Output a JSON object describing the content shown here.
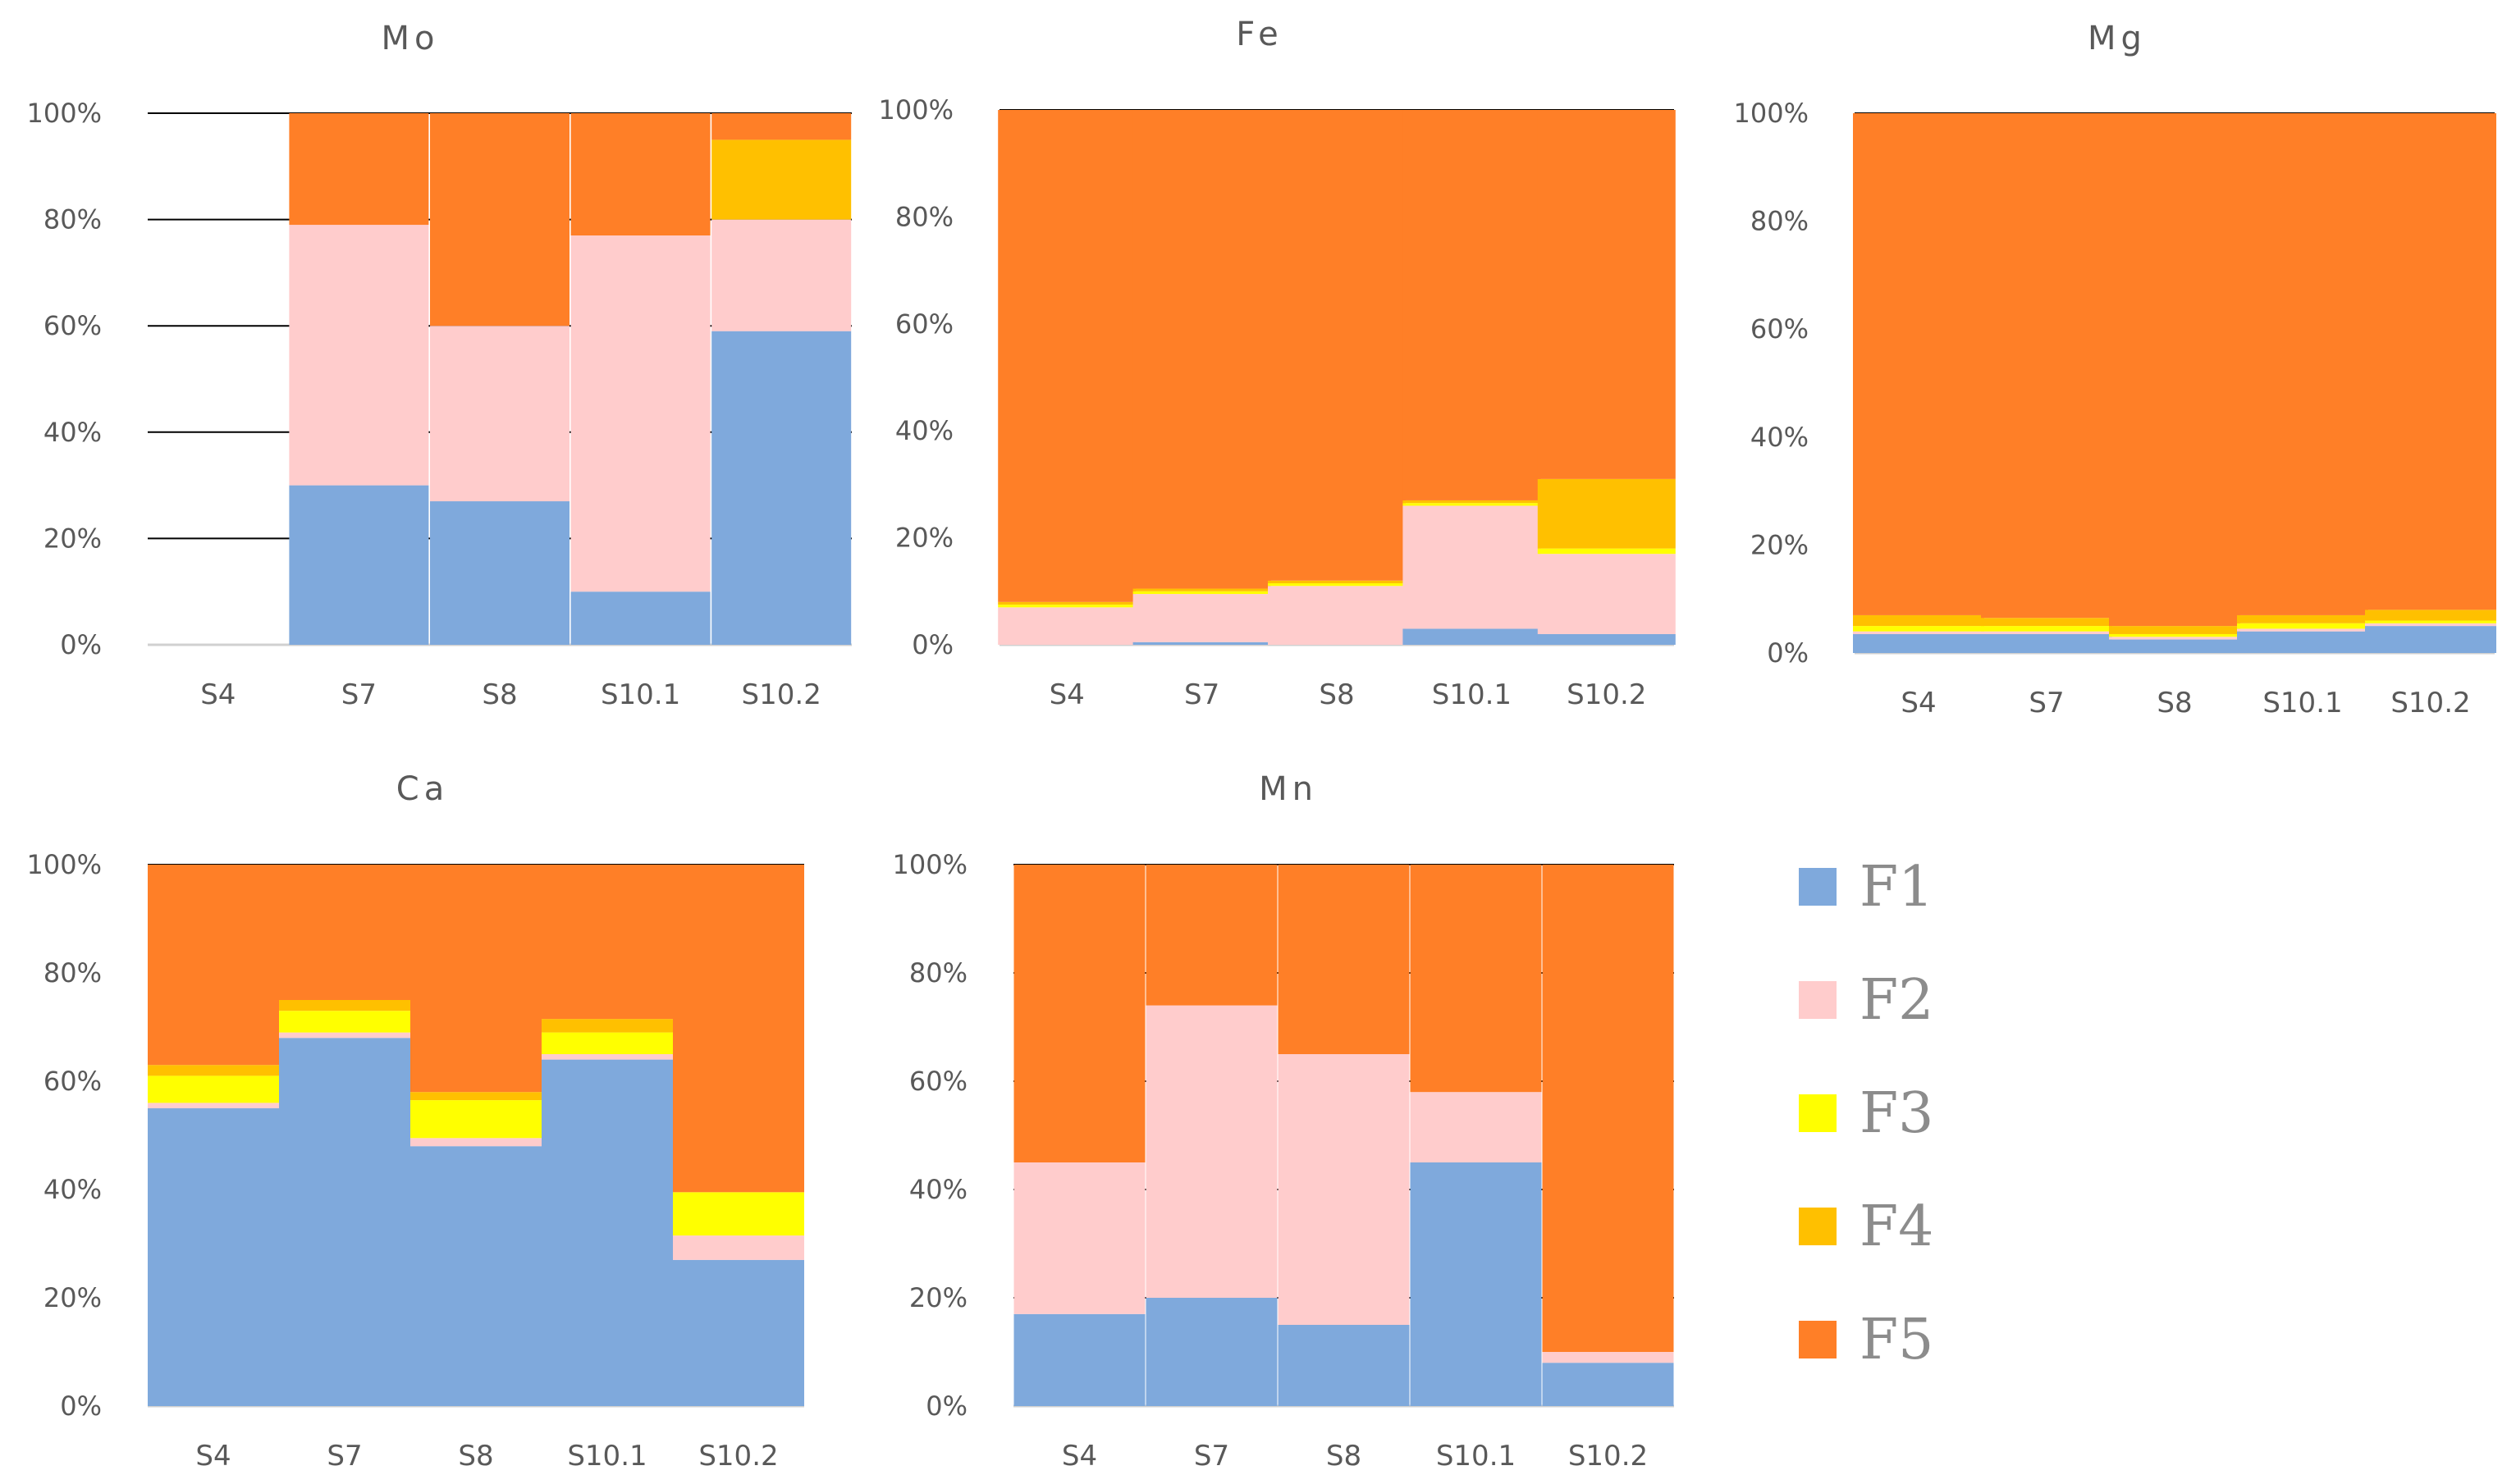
{
  "legend": {
    "items": [
      {
        "label": "F1",
        "color": "#7fa9dc"
      },
      {
        "label": "F2",
        "color": "#ffcccc"
      },
      {
        "label": "F3",
        "color": "#ffff00"
      },
      {
        "label": "F4",
        "color": "#ffc000"
      },
      {
        "label": "F5",
        "color": "#ff7f27"
      }
    ]
  },
  "chart_data": [
    {
      "type": "bar",
      "stacked": true,
      "title": "Mo",
      "categories": [
        "S4",
        "S7",
        "S8",
        "S10.1",
        "S10.2"
      ],
      "ylim": [
        0,
        100
      ],
      "yticks": [
        "0%",
        "20%",
        "40%",
        "60%",
        "80%",
        "100%"
      ],
      "grid": true,
      "series": [
        {
          "name": "F1",
          "values": [
            0,
            30,
            27,
            10,
            59
          ]
        },
        {
          "name": "F2",
          "values": [
            0,
            49,
            33,
            67,
            21
          ]
        },
        {
          "name": "F3",
          "values": [
            0,
            0,
            0,
            0,
            0
          ]
        },
        {
          "name": "F4",
          "values": [
            0,
            0,
            0,
            0,
            15
          ]
        },
        {
          "name": "F5",
          "values": [
            0,
            21,
            40,
            23,
            5
          ]
        }
      ]
    },
    {
      "type": "bar",
      "stacked": true,
      "title": "Fe",
      "categories": [
        "S4",
        "S7",
        "S8",
        "S10.1",
        "S10.2"
      ],
      "ylim": [
        0,
        100
      ],
      "yticks": [
        "0%",
        "20%",
        "40%",
        "60%",
        "80%",
        "100%"
      ],
      "grid": true,
      "series": [
        {
          "name": "F1",
          "values": [
            0,
            0.5,
            0,
            3,
            2
          ]
        },
        {
          "name": "F2",
          "values": [
            7,
            9,
            11,
            23,
            15
          ]
        },
        {
          "name": "F3",
          "values": [
            0.5,
            0.5,
            0.5,
            0.5,
            1
          ]
        },
        {
          "name": "F4",
          "values": [
            0.5,
            0.5,
            0.5,
            0.5,
            13
          ]
        },
        {
          "name": "F5",
          "values": [
            92,
            89.5,
            88,
            73,
            69
          ]
        }
      ]
    },
    {
      "type": "bar",
      "stacked": true,
      "title": "Mg",
      "categories": [
        "S4",
        "S7",
        "S8",
        "S10.1",
        "S10.2"
      ],
      "ylim": [
        0,
        100
      ],
      "yticks": [
        "0%",
        "20%",
        "40%",
        "60%",
        "80%",
        "100%"
      ],
      "grid": true,
      "series": [
        {
          "name": "F1",
          "values": [
            3.5,
            3.5,
            2.5,
            4,
            5
          ]
        },
        {
          "name": "F2",
          "values": [
            0.5,
            0.5,
            0.5,
            0.5,
            0.5
          ]
        },
        {
          "name": "F3",
          "values": [
            1,
            1,
            0.5,
            1,
            0.5
          ]
        },
        {
          "name": "F4",
          "values": [
            2,
            1.5,
            1.5,
            1.5,
            2
          ]
        },
        {
          "name": "F5",
          "values": [
            93,
            93.5,
            95,
            93,
            92
          ]
        }
      ]
    },
    {
      "type": "bar",
      "stacked": true,
      "title": "Ca",
      "categories": [
        "S4",
        "S7",
        "S8",
        "S10.1",
        "S10.2"
      ],
      "ylim": [
        0,
        100
      ],
      "yticks": [
        "0%",
        "20%",
        "40%",
        "60%",
        "80%",
        "100%"
      ],
      "grid": true,
      "series": [
        {
          "name": "F1",
          "values": [
            55,
            68,
            48,
            64,
            27
          ]
        },
        {
          "name": "F2",
          "values": [
            1,
            1,
            1.5,
            1,
            4.5
          ]
        },
        {
          "name": "F3",
          "values": [
            5,
            4,
            7,
            4,
            8
          ]
        },
        {
          "name": "F4",
          "values": [
            2,
            2,
            1.5,
            2.5,
            0
          ]
        },
        {
          "name": "F5",
          "values": [
            37,
            25,
            42,
            28.5,
            60.5
          ]
        }
      ]
    },
    {
      "type": "bar",
      "stacked": true,
      "title": "Mn",
      "categories": [
        "S4",
        "S7",
        "S8",
        "S10.1",
        "S10.2"
      ],
      "ylim": [
        0,
        100
      ],
      "yticks": [
        "0%",
        "20%",
        "40%",
        "60%",
        "80%",
        "100%"
      ],
      "grid": true,
      "series": [
        {
          "name": "F1",
          "values": [
            17,
            20,
            15,
            45,
            8
          ]
        },
        {
          "name": "F2",
          "values": [
            28,
            54,
            50,
            13,
            2
          ]
        },
        {
          "name": "F3",
          "values": [
            0,
            0,
            0,
            0,
            0
          ]
        },
        {
          "name": "F4",
          "values": [
            0,
            0,
            0,
            0,
            0
          ]
        },
        {
          "name": "F5",
          "values": [
            55,
            26,
            35,
            42,
            90
          ]
        }
      ]
    }
  ]
}
